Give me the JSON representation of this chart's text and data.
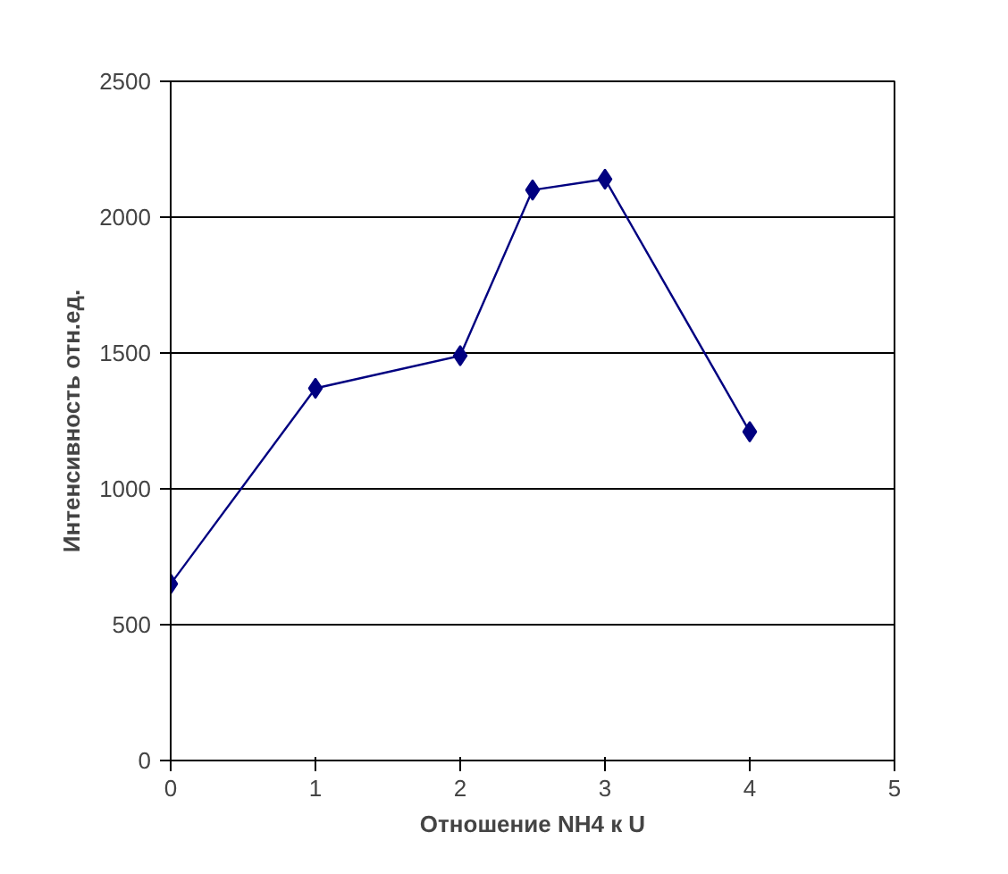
{
  "chart_data": {
    "type": "line",
    "xlabel": "Отношение NH4 к U",
    "ylabel": "Интенсивность отн.ед.",
    "x": [
      0,
      1,
      2,
      2.5,
      3,
      4
    ],
    "series": [
      {
        "color": "#000080",
        "values": [
          650,
          1370,
          1490,
          2100,
          2140,
          1210
        ]
      }
    ],
    "xlim": [
      0,
      5
    ],
    "xticks": [
      0,
      1,
      2,
      3,
      4,
      5
    ],
    "ylim": [
      0,
      2500
    ],
    "yticks": [
      0,
      500,
      1000,
      1500,
      2000,
      2500
    ],
    "grid": "y",
    "marker": "diamond",
    "line_style": "solid"
  }
}
